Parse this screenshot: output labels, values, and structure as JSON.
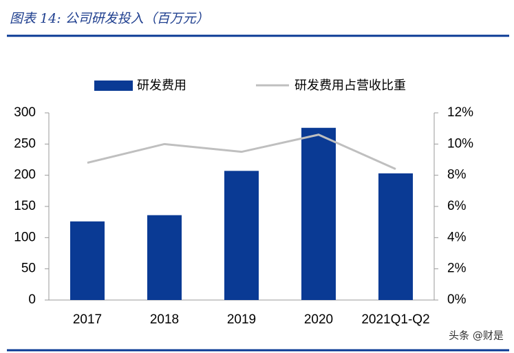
{
  "chart_data": {
    "type": "bar-line",
    "title": "图表 14:  公司研发投入（百万元）",
    "categories": [
      "2017",
      "2018",
      "2019",
      "2020",
      "2021Q1-Q2"
    ],
    "series": [
      {
        "name": "研发费用",
        "type": "bar",
        "color": "#0a3a94",
        "values": [
          126,
          136,
          207,
          276,
          203
        ]
      },
      {
        "name": "研发费用占营收比重",
        "type": "line",
        "axis": "y2",
        "color": "#bfbfbf",
        "values": [
          8.8,
          10.0,
          9.5,
          10.6,
          8.4
        ]
      }
    ],
    "ylim": [
      0,
      300
    ],
    "yticks": [
      0,
      50,
      100,
      150,
      200,
      250,
      300
    ],
    "y2lim": [
      0,
      12
    ],
    "y2ticks": [
      {
        "value": 0,
        "label": "0%"
      },
      {
        "value": 2,
        "label": "2%"
      },
      {
        "value": 4,
        "label": "4%"
      },
      {
        "value": 6,
        "label": "6%"
      },
      {
        "value": 8,
        "label": "8%"
      },
      {
        "value": 10,
        "label": "10%"
      },
      {
        "value": 12,
        "label": "12%"
      }
    ],
    "legend": "top",
    "grid": false
  },
  "watermark": "头条 @财是"
}
